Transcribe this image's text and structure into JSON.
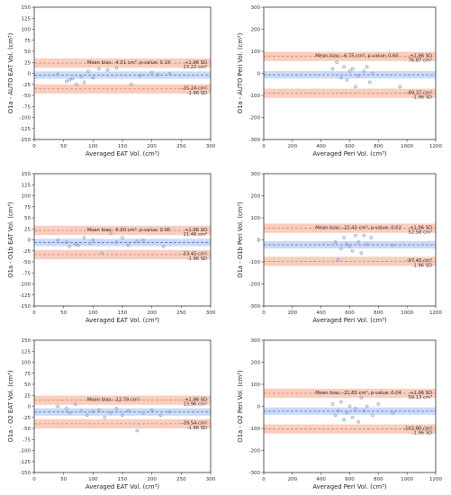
{
  "colors": {
    "band": "#f4a58a",
    "band_line": "#e08060",
    "mean_band": "#a9c2ee",
    "mean_line": "#5577cc",
    "point": "#8fa5c8",
    "axis": "#333333"
  },
  "chart_data": [
    {
      "type": "scatter",
      "xlabel": "Averaged EAT Vol. (cm³)",
      "ylabel": "O1a - AUTO EAT Vol. (cm³)",
      "xlim": [
        0,
        300
      ],
      "ylim": [
        -150,
        150
      ],
      "xticks": [
        0,
        50,
        100,
        150,
        200,
        250,
        300
      ],
      "yticks": [
        -150,
        -125,
        -100,
        -75,
        -50,
        -25,
        0,
        25,
        50,
        75,
        100,
        125,
        150
      ],
      "mean_bias": -4.01,
      "upper_loa": 23.22,
      "lower_loa": -35.24,
      "annotations": {
        "mean_text": "Mean bias: -4.01 cm³, p-value: 0.19",
        "upper_sd": "+1.96 SD",
        "upper_val": "23.22 cm³",
        "lower_val": "-35.24 cm³",
        "lower_sd": "-1.96 SD"
      },
      "x": [
        40,
        55,
        60,
        65,
        72,
        80,
        85,
        92,
        100,
        110,
        125,
        140,
        165,
        180,
        200,
        210,
        230
      ],
      "y": [
        -2,
        -18,
        -15,
        -12,
        -25,
        -8,
        -20,
        5,
        -10,
        10,
        8,
        12,
        -25,
        -5,
        2,
        -3,
        0
      ]
    },
    {
      "type": "scatter",
      "xlabel": "Averaged Peri Vol. (cm³)",
      "ylabel": "O1a - AUTO Peri Vol. (cm³)",
      "xlim": [
        0,
        1200
      ],
      "ylim": [
        -300,
        300
      ],
      "xticks": [
        0,
        200,
        400,
        600,
        800,
        1000,
        1200
      ],
      "yticks": [
        -300,
        -200,
        -100,
        0,
        100,
        200,
        300
      ],
      "mean_bias": -6.75,
      "upper_loa": 76.87,
      "lower_loa": -90.37,
      "annotations": {
        "mean_text": "Mean bias: -6.75 cm³, p-value: 0.60",
        "upper_sd": "+1.96 SD",
        "upper_val": "76.87 cm³",
        "lower_val": "-90.37 cm³",
        "lower_sd": "-1.96 SD"
      },
      "x": [
        480,
        510,
        540,
        560,
        580,
        600,
        620,
        640,
        660,
        700,
        720,
        740,
        760,
        950
      ],
      "y": [
        20,
        50,
        -20,
        30,
        -30,
        10,
        20,
        -60,
        -10,
        10,
        30,
        -40,
        0,
        -60
      ]
    },
    {
      "type": "scatter",
      "xlabel": "Averaged EAT Vol. (cm³)",
      "ylabel": "O1a - O1b EAT Vol. (cm³)",
      "xlim": [
        0,
        300
      ],
      "ylim": [
        -150,
        150
      ],
      "xticks": [
        0,
        50,
        100,
        150,
        200,
        250,
        300
      ],
      "yticks": [
        -150,
        -125,
        -100,
        -75,
        -50,
        -25,
        0,
        25,
        50,
        75,
        100,
        125,
        150
      ],
      "mean_bias": -6.0,
      "upper_loa": 21.46,
      "lower_loa": -33.45,
      "annotations": {
        "mean_text": "Mean bias: -6.00 cm³, p-value: 0.06",
        "upper_sd": "+1.96 SD",
        "upper_val": "21.46 cm³",
        "lower_val": "-33.45 cm³",
        "lower_sd": "-1.96 SD"
      },
      "x": [
        40,
        55,
        60,
        70,
        75,
        85,
        95,
        100,
        115,
        130,
        140,
        150,
        160,
        175,
        185,
        220
      ],
      "y": [
        0,
        -5,
        -15,
        -10,
        -12,
        5,
        -8,
        0,
        -30,
        15,
        -5,
        5,
        -12,
        -3,
        0,
        -15
      ]
    },
    {
      "type": "scatter",
      "xlabel": "Averaged Peri Vol. (cm³)",
      "ylabel": "O1a - O1b Peri Vol. (cm³)",
      "xlim": [
        0,
        1200
      ],
      "ylim": [
        -300,
        300
      ],
      "xticks": [
        0,
        200,
        400,
        600,
        800,
        1000,
        1200
      ],
      "yticks": [
        -300,
        -200,
        -100,
        0,
        100,
        200,
        300
      ],
      "mean_bias": -22.43,
      "upper_loa": 52.58,
      "lower_loa": -97.45,
      "annotations": {
        "mean_text": "Mean bias: -22.43 cm³, p-value: 0.02",
        "upper_sd": "+1.96 SD",
        "upper_val": "52.58 cm³",
        "lower_val": "-97.45 cm³",
        "lower_sd": "-1.96 SD"
      },
      "x": [
        500,
        520,
        540,
        560,
        580,
        600,
        620,
        640,
        660,
        680,
        700,
        720,
        750,
        900
      ],
      "y": [
        -10,
        -90,
        -40,
        10,
        -20,
        -30,
        -50,
        20,
        -10,
        -60,
        20,
        -20,
        10,
        -25
      ]
    },
    {
      "type": "scatter",
      "xlabel": "Averaged EAT Vol. (cm³)",
      "ylabel": "O1a - O2 EAT Vol. (cm³)",
      "xlim": [
        0,
        300
      ],
      "ylim": [
        -150,
        150
      ],
      "xticks": [
        0,
        50,
        100,
        150,
        200,
        250,
        300
      ],
      "yticks": [
        -150,
        -125,
        -100,
        -75,
        -50,
        -25,
        0,
        25,
        50,
        75,
        100,
        125,
        150
      ],
      "mean_bias": -12.79,
      "upper_loa": 13.96,
      "lower_loa": -39.54,
      "annotations": {
        "mean_text": "Mean bias: -12.79 cm³",
        "upper_sd": "+1.96 SD",
        "upper_val": "13.96 cm³",
        "lower_val": "-39.54 cm³",
        "lower_sd": "-1.96 SD"
      },
      "x": [
        40,
        55,
        60,
        70,
        80,
        90,
        100,
        110,
        120,
        130,
        140,
        150,
        160,
        175,
        185,
        200,
        215,
        230
      ],
      "y": [
        0,
        -5,
        -15,
        5,
        -10,
        -20,
        -12,
        -8,
        -25,
        -15,
        -5,
        -20,
        -10,
        -55,
        -15,
        -8,
        -20,
        -12
      ]
    },
    {
      "type": "scatter",
      "xlabel": "Averaged Peri Vol. (cm³)",
      "ylabel": "O1a - O2 Peri Vol. (cm³)",
      "xlim": [
        0,
        1200
      ],
      "ylim": [
        -300,
        300
      ],
      "xticks": [
        0,
        200,
        400,
        600,
        800,
        1000,
        1200
      ],
      "yticks": [
        -300,
        -200,
        -100,
        0,
        100,
        200,
        300
      ],
      "mean_bias": -21.83,
      "upper_loa": 59.13,
      "lower_loa": -102.8,
      "annotations": {
        "mean_text": "Mean bias: -21.83 cm³, p-value: 0.04",
        "upper_sd": "+1.96 SD",
        "upper_val": "59.13 cm³",
        "lower_val": "-102.80 cm³",
        "lower_sd": "-1.96 SD"
      },
      "x": [
        480,
        500,
        520,
        540,
        560,
        580,
        600,
        620,
        640,
        660,
        680,
        700,
        720,
        760,
        800,
        900
      ],
      "y": [
        10,
        -40,
        -20,
        20,
        -60,
        -30,
        0,
        -50,
        -10,
        -70,
        40,
        -20,
        0,
        -40,
        10,
        -30
      ]
    }
  ]
}
